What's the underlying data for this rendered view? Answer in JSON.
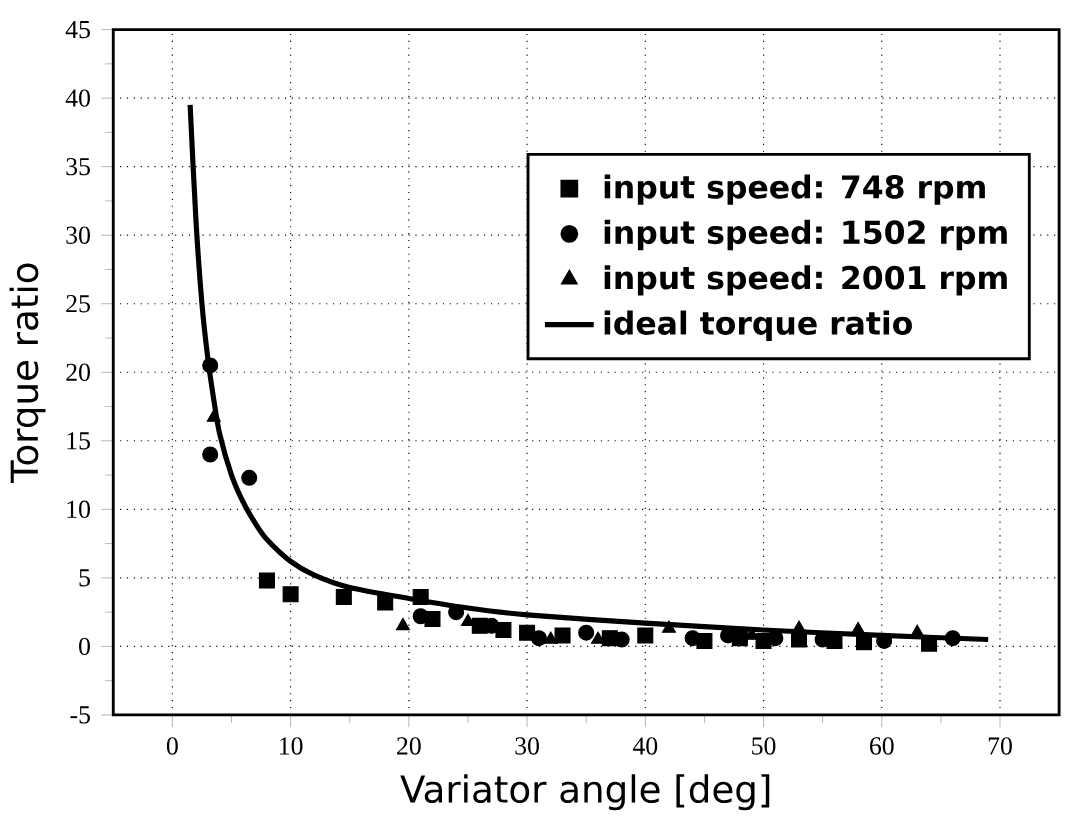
{
  "chart_data": {
    "type": "scatter",
    "xlabel": "Variator angle [deg]",
    "ylabel": "Torque ratio",
    "xlim": [
      -5,
      75
    ],
    "ylim": [
      -5,
      45
    ],
    "xticks": [
      0,
      10,
      20,
      30,
      40,
      50,
      60,
      70
    ],
    "yticks": [
      -5,
      0,
      5,
      10,
      15,
      20,
      25,
      30,
      35,
      40,
      45
    ],
    "grid": true,
    "legend": "top right",
    "series": [
      {
        "name": "input speed: 748 rpm",
        "color": "#000000",
        "marker": "square",
        "x": [
          8,
          10,
          14.5,
          18,
          21,
          22,
          26,
          28,
          30,
          33,
          37,
          40,
          45,
          48,
          50,
          53,
          56,
          58.5,
          64
        ],
        "values": [
          4.8,
          3.8,
          3.6,
          3.2,
          3.6,
          2.0,
          1.5,
          1.2,
          1.0,
          0.8,
          0.6,
          0.8,
          0.4,
          0.6,
          0.4,
          0.5,
          0.4,
          0.3,
          0.2
        ]
      },
      {
        "name": "input speed: 1502 rpm",
        "color": "#000000",
        "marker": "circle",
        "x": [
          3.2,
          3.2,
          6.5,
          21,
          24,
          27,
          31,
          35,
          38,
          44,
          47,
          51,
          55,
          60.2,
          66
        ],
        "values": [
          20.5,
          14,
          12.3,
          2.2,
          2.5,
          1.5,
          0.6,
          1.0,
          0.5,
          0.6,
          0.8,
          0.6,
          0.5,
          0.4,
          0.6
        ]
      },
      {
        "name": "input speed: 2001 rpm",
        "color": "#000000",
        "marker": "triangle",
        "x": [
          3.5,
          19.5,
          25,
          32,
          36,
          42,
          49,
          53,
          58,
          63
        ],
        "values": [
          16.7,
          1.5,
          1.8,
          0.5,
          0.5,
          1.3,
          0.8,
          1.3,
          1.2,
          1.0
        ]
      },
      {
        "name": "ideal torque ratio",
        "type": "line",
        "color": "#000000",
        "marker": "none",
        "line_style": "solid",
        "x": [
          1.5,
          2,
          2.5,
          3,
          3.5,
          4,
          5,
          6,
          7,
          8,
          10,
          12,
          15,
          20,
          25,
          30,
          40,
          50,
          60,
          69
        ],
        "values": [
          39.5,
          31,
          25,
          21,
          18,
          15.5,
          12.5,
          10.5,
          9,
          7.8,
          6.2,
          5.2,
          4.3,
          3.5,
          2.8,
          2.3,
          1.7,
          1.2,
          0.8,
          0.5
        ]
      }
    ]
  }
}
